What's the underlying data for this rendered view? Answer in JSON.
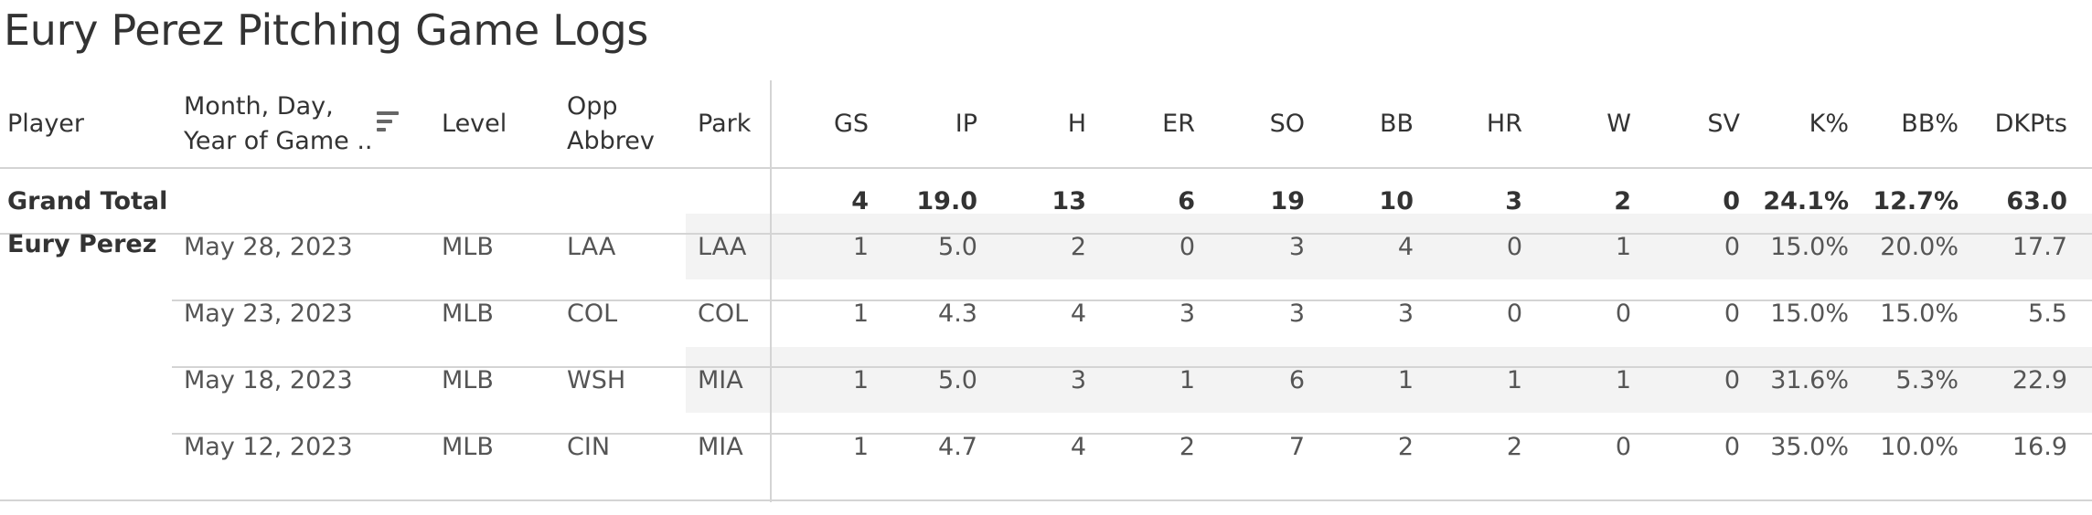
{
  "title": "Eury Perez Pitching Game Logs",
  "headers": {
    "player": "Player",
    "date_line1": "Month, Day,",
    "date_line2": "Year of Game ..",
    "level": "Level",
    "opp_line1": "Opp",
    "opp_line2": "Abbrev",
    "park": "Park",
    "stats": [
      "GS",
      "IP",
      "H",
      "ER",
      "SO",
      "BB",
      "HR",
      "W",
      "SV",
      "K%",
      "BB%",
      "DKPts"
    ]
  },
  "sort_icon": "sort-descending-icon",
  "grand_total": {
    "label": "Grand Total",
    "stats": [
      "4",
      "19.0",
      "13",
      "6",
      "19",
      "10",
      "3",
      "2",
      "0",
      "24.1%",
      "12.7%",
      "63.0"
    ]
  },
  "player_name": "Eury Perez",
  "rows": [
    {
      "date": "May 28, 2023",
      "level": "MLB",
      "opp": "LAA",
      "park": "LAA",
      "stats": [
        "1",
        "5.0",
        "2",
        "0",
        "3",
        "4",
        "0",
        "1",
        "0",
        "15.0%",
        "20.0%",
        "17.7"
      ]
    },
    {
      "date": "May 23, 2023",
      "level": "MLB",
      "opp": "COL",
      "park": "COL",
      "stats": [
        "1",
        "4.3",
        "4",
        "3",
        "3",
        "3",
        "0",
        "0",
        "0",
        "15.0%",
        "15.0%",
        "5.5"
      ]
    },
    {
      "date": "May 18, 2023",
      "level": "MLB",
      "opp": "WSH",
      "park": "MIA",
      "stats": [
        "1",
        "5.0",
        "3",
        "1",
        "6",
        "1",
        "1",
        "1",
        "0",
        "31.6%",
        "5.3%",
        "22.9"
      ]
    },
    {
      "date": "May 12, 2023",
      "level": "MLB",
      "opp": "CIN",
      "park": "MIA",
      "stats": [
        "1",
        "4.7",
        "4",
        "2",
        "7",
        "2",
        "2",
        "0",
        "0",
        "35.0%",
        "10.0%",
        "16.9"
      ]
    }
  ],
  "colors": {
    "grid": "#d4d4d4",
    "shade": "#f3f3f3",
    "text": "#333333",
    "muted": "#555555"
  }
}
